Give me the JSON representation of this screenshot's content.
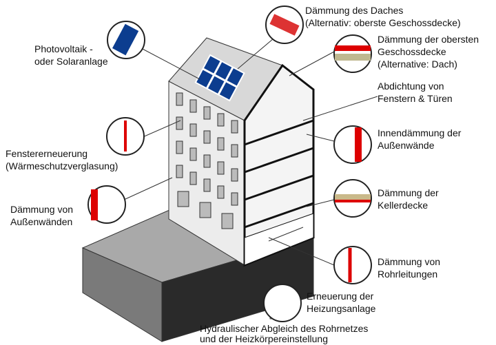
{
  "labels": [
    {
      "lines": [
        "Dämmung des Daches",
        "(Alternativ: oberste Geschossdecke)"
      ]
    },
    {
      "lines": [
        "Photovoltaik -",
        "oder Solaranlage"
      ]
    },
    {
      "lines": [
        "Dämmung der obersten",
        "Geschossdecke",
        "(Alternative: Dach)"
      ]
    },
    {
      "lines": [
        "Abdichtung von",
        "Fenstern & Türen"
      ]
    },
    {
      "lines": [
        "Innendämmung der",
        "Außenwände"
      ]
    },
    {
      "lines": [
        "Fenstererneuerung",
        "(Wärmeschutzverglasung)"
      ]
    },
    {
      "lines": [
        "Dämmung der",
        "Kellerdecke"
      ]
    },
    {
      "lines": [
        "Dämmung von",
        "Außenwänden"
      ]
    },
    {
      "lines": [
        "Dämmung von",
        "Rohrleitungen"
      ]
    },
    {
      "lines": [
        "Erneuerung der",
        "Heizungsanlage"
      ]
    },
    {
      "lines": [
        "Hydraulischer Abgleich des Rohrnetzes",
        "und der Heizkörpereinstellung"
      ]
    }
  ]
}
